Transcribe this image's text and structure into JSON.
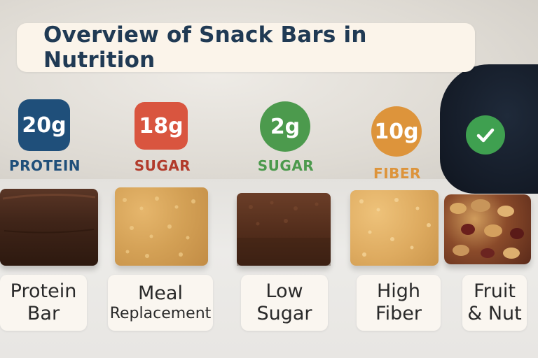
{
  "title": "Overview of Snack Bars in Nutrition",
  "badges": [
    {
      "value": "20g",
      "nutrient": "PROTEIN",
      "color": "#1f4f7a"
    },
    {
      "value": "18g",
      "nutrient": "SUGAR",
      "color": "#d9553f"
    },
    {
      "value": "2g",
      "nutrient": "SUGAR",
      "color": "#4c9a4d"
    },
    {
      "value": "10g",
      "nutrient": "FIBER",
      "color": "#dd943b"
    },
    {
      "icon": "checkmark-icon",
      "color": "#3fa050"
    }
  ],
  "bars": [
    {
      "line1": "Protein",
      "line2": "Bar",
      "icon": "chocolate-bar-icon"
    },
    {
      "line1": "Meal",
      "line2": "Replacement",
      "icon": "oat-bar-icon"
    },
    {
      "line1": "Low",
      "line2": "Sugar",
      "icon": "cocoa-bar-icon"
    },
    {
      "line1": "High",
      "line2": "Fiber",
      "icon": "grain-bar-icon"
    },
    {
      "line1": "Fruit",
      "line2": "& Nut",
      "icon": "fruit-nut-bar-icon"
    }
  ]
}
